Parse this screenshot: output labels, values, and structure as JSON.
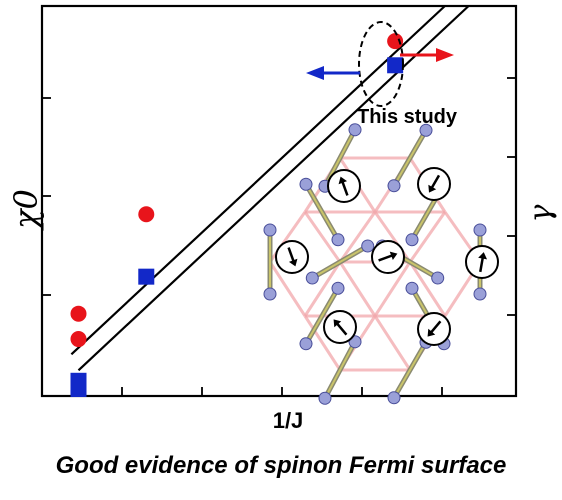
{
  "caption": "Good evidence of spinon Fermi surface",
  "chart_data": {
    "type": "scatter",
    "xlabel": "1/J",
    "ylabel_left": "χ0",
    "ylabel_right": "γ",
    "annotation": "This study",
    "xlim": [
      0,
      1
    ],
    "ylim": [
      0,
      1
    ],
    "grid": false,
    "series": [
      {
        "name": "",
        "color": "#e8141b",
        "marker": "circle",
        "x": [
          0.077,
          0.077,
          0.22,
          0.745
        ],
        "y": [
          0.146,
          0.211,
          0.466,
          0.91
        ]
      },
      {
        "name": "",
        "color": "#1228c8",
        "marker": "square",
        "x": [
          0.077,
          0.077,
          0.22,
          0.745
        ],
        "y": [
          0.018,
          0.039,
          0.306,
          0.848
        ]
      }
    ],
    "fit_lines": [
      {
        "x": [
          0.062,
          0.85
        ],
        "y": [
          0.107,
          1.0
        ]
      },
      {
        "x": [
          0.077,
          0.9
        ],
        "y": [
          0.066,
          1.0
        ]
      }
    ],
    "colors": {
      "left_arrow": "#1228c8",
      "right_arrow": "#e8141b",
      "lattice": "#f2a8ac"
    }
  }
}
